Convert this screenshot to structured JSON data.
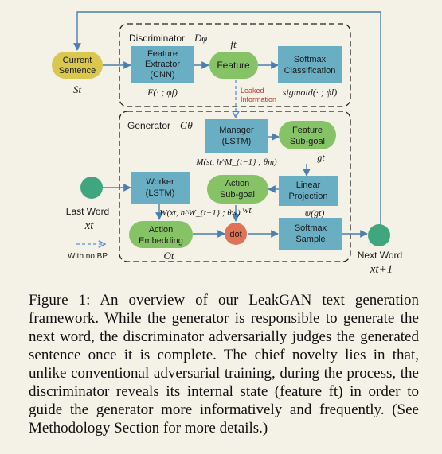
{
  "diagram": {
    "discriminator_title": "Discriminator",
    "discriminator_symbol": "Dϕ",
    "generator_title": "Generator",
    "generator_symbol": "Gθ",
    "current_sentence": [
      "Current",
      "Sentence"
    ],
    "current_sentence_symbol": "St",
    "feature_extractor": [
      "Feature",
      "Extractor",
      "(CNN)"
    ],
    "feature_extractor_formula": "F(· ; ϕf)",
    "feature": "Feature",
    "feature_symbol": "ft",
    "softmax_classification": [
      "Softmax",
      "Classification"
    ],
    "softmax_classification_formula": "sigmoid(· ; ϕl)",
    "leaked_information": [
      "Leaked",
      "Information"
    ],
    "manager": [
      "Manager",
      "(LSTM)"
    ],
    "manager_formula": "M(st, h^M_{t−1} ; θm)",
    "feature_subgoal": [
      "Feature",
      "Sub-goal"
    ],
    "feature_subgoal_symbol": "gt",
    "linear_projection": [
      "Linear",
      "Projection"
    ],
    "linear_projection_formula": "ψ(gt)",
    "worker": [
      "Worker",
      "(LSTM)"
    ],
    "worker_formula": "W(xt, h^W_{t−1} ; θw)",
    "action_subgoal": [
      "Action",
      "Sub-goal"
    ],
    "action_subgoal_symbol": "wt",
    "action_embedding": [
      "Action",
      "Embedding"
    ],
    "action_embedding_symbol": "Ot",
    "dot": "dot",
    "softmax_sample": [
      "Softmax",
      "Sample"
    ],
    "last_word": "Last Word",
    "last_word_symbol": "xt",
    "next_word": "Next Word",
    "next_word_symbol": "xt+1",
    "legend_no_bp": "With no BP"
  },
  "caption": "Figure 1: An overview of our LeakGAN text generation framework. While the generator is responsible to generate the next word, the discriminator adversarially judges the generated sentence once it is complete. The chief novelty lies in that, unlike conventional adversarial training, during the process, the discriminator reveals its internal state (feature ft) in order to guide the generator more informatively and frequently. (See Methodology Section for more details.)",
  "colors": {
    "background": "#f4f1e6",
    "rect_node": "#6aaec4",
    "rounded_node": "#86c266",
    "current_sentence": "#d9c74f",
    "dot_node": "#e07258",
    "word_node": "#3fa67f",
    "leaked_text": "#c0392b",
    "leaked_arrow": "#5b8fd6",
    "edge": "#4a7fb0"
  }
}
